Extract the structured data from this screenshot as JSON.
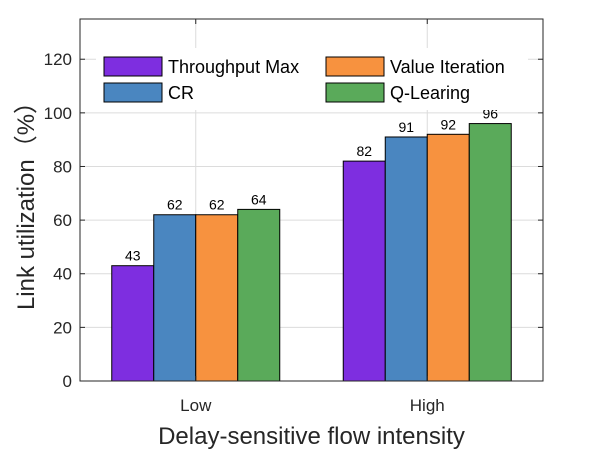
{
  "chart_data": {
    "type": "bar",
    "title": "",
    "xlabel": "Delay-sensitive flow intensity",
    "ylabel": "Link utilization（%）",
    "categories": [
      "Low",
      "High"
    ],
    "ylim": [
      0,
      135
    ],
    "yticks": [
      0,
      20,
      40,
      60,
      80,
      100,
      120
    ],
    "grid": true,
    "legend_position": "top",
    "series": [
      {
        "name": "Throughput Max",
        "color": "#7e2ee0",
        "values": [
          43,
          82
        ]
      },
      {
        "name": "CR",
        "color": "#4a86c0",
        "values": [
          62,
          91
        ]
      },
      {
        "name": "Value Iteration",
        "color": "#f7923f",
        "values": [
          62,
          92
        ]
      },
      {
        "name": "Q-Learing",
        "color": "#5aaa5a",
        "values": [
          64,
          96
        ]
      }
    ]
  }
}
